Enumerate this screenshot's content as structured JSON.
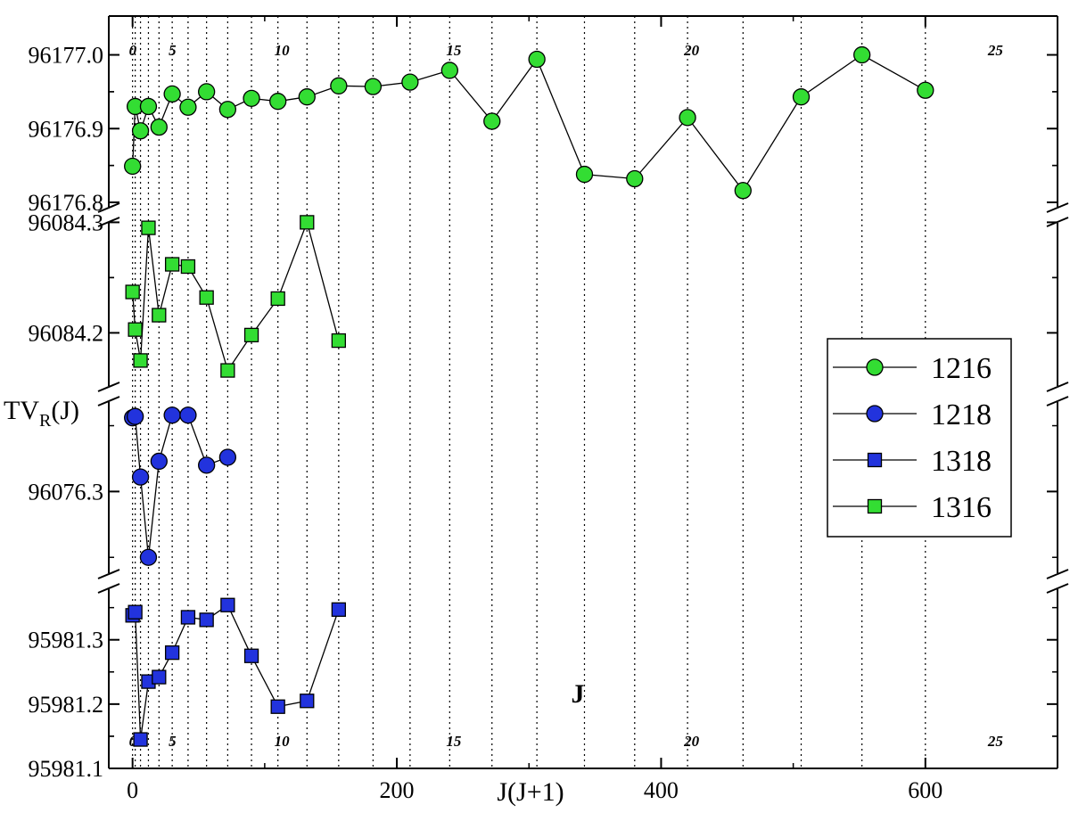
{
  "chart_data": {
    "type": "scatter",
    "xlabel": "J(J+1)",
    "ylabel": "TV",
    "ylabel_sub": "R",
    "ylabel_suffix": "(J)",
    "top_axis_label": "J",
    "xlim": [
      -18,
      700
    ],
    "x_ticks": [
      0,
      200,
      400,
      600
    ],
    "x_tick_labels": [
      "0",
      "200",
      "400",
      "600"
    ],
    "j_gridlines": [
      0,
      1,
      2,
      3,
      4,
      5,
      6,
      7,
      8,
      9,
      10,
      11,
      12,
      13,
      14,
      15,
      16,
      17,
      18,
      19,
      20,
      21,
      22,
      23,
      24
    ],
    "j_labels": [
      {
        "j": 0,
        "text": "0"
      },
      {
        "j": 5,
        "text": "5"
      },
      {
        "j": 10,
        "text": "10"
      },
      {
        "j": 15,
        "text": "15"
      },
      {
        "j": 20,
        "text": "20"
      },
      {
        "j": 25,
        "text": "25"
      }
    ],
    "grid": "vertical dotted lines at J(J+1)",
    "legend_position": "right",
    "panels": [
      {
        "id": "p1216",
        "ylim": [
          96176.8,
          96177.02
        ],
        "y_ticks": [
          96176.8,
          96176.9,
          96177.0
        ],
        "y_tick_labels": [
          "96176.8",
          "96176.9",
          "96177.0"
        ]
      },
      {
        "id": "p1316",
        "ylim": [
          96084.16,
          96084.31
        ],
        "y_ticks": [
          96084.2,
          96084.3
        ],
        "y_tick_labels": [
          "96084.2",
          "96084.3"
        ]
      },
      {
        "id": "p1218",
        "ylim": [
          96076.24,
          96076.37
        ],
        "y_ticks": [
          96076.3
        ],
        "y_tick_labels": [
          "96076.3"
        ]
      },
      {
        "id": "p1318",
        "ylim": [
          95981.1,
          95981.38
        ],
        "y_ticks": [
          95981.1,
          95981.2,
          95981.3
        ],
        "y_tick_labels": [
          "95981.1",
          "95981.2",
          "95981.3"
        ]
      }
    ],
    "series": [
      {
        "name": "1216",
        "marker": "circle",
        "color": "#33dd33",
        "panel": "p1216",
        "points": [
          [
            0,
            96176.849
          ],
          [
            2,
            96176.93
          ],
          [
            6,
            96176.897
          ],
          [
            12,
            96176.93
          ],
          [
            20,
            96176.902
          ],
          [
            30,
            96176.947
          ],
          [
            42,
            96176.929
          ],
          [
            56,
            96176.95
          ],
          [
            72,
            96176.926
          ],
          [
            90,
            96176.941
          ],
          [
            110,
            96176.937
          ],
          [
            132,
            96176.943
          ],
          [
            156,
            96176.958
          ],
          [
            182,
            96176.957
          ],
          [
            210,
            96176.963
          ],
          [
            240,
            96176.979
          ],
          [
            272,
            96176.91
          ],
          [
            306,
            96176.994
          ],
          [
            342,
            96176.838
          ],
          [
            380,
            96176.832
          ],
          [
            420,
            96176.915
          ],
          [
            462,
            96176.816
          ],
          [
            506,
            96176.943
          ],
          [
            552,
            96177.0
          ],
          [
            600,
            96176.952
          ]
        ]
      },
      {
        "name": "1218",
        "marker": "circle",
        "color": "#2233dd",
        "panel": "p1218",
        "points": [
          [
            0,
            96076.356
          ],
          [
            2,
            96076.357
          ],
          [
            6,
            96076.311
          ],
          [
            12,
            96076.25
          ],
          [
            20,
            96076.323
          ],
          [
            30,
            96076.358
          ],
          [
            42,
            96076.358
          ],
          [
            56,
            96076.32
          ],
          [
            72,
            96076.326
          ]
        ]
      },
      {
        "name": "1318",
        "marker": "square",
        "color": "#2233dd",
        "panel": "p1318",
        "points": [
          [
            0,
            95981.338
          ],
          [
            2,
            95981.343
          ],
          [
            6,
            95981.145
          ],
          [
            12,
            95981.235
          ],
          [
            20,
            95981.242
          ],
          [
            30,
            95981.28
          ],
          [
            42,
            95981.335
          ],
          [
            56,
            95981.331
          ],
          [
            72,
            95981.354
          ],
          [
            90,
            95981.275
          ],
          [
            110,
            95981.196
          ],
          [
            132,
            95981.205
          ],
          [
            156,
            95981.347
          ]
        ]
      },
      {
        "name": "1316",
        "marker": "square",
        "color": "#33dd33",
        "panel": "p1316",
        "points": [
          [
            0,
            96084.237
          ],
          [
            2,
            96084.203
          ],
          [
            6,
            96084.175
          ],
          [
            12,
            96084.295
          ],
          [
            20,
            96084.216
          ],
          [
            30,
            96084.262
          ],
          [
            42,
            96084.26
          ],
          [
            56,
            96084.232
          ],
          [
            72,
            96084.166
          ],
          [
            90,
            96084.198
          ],
          [
            110,
            96084.231
          ],
          [
            132,
            96084.3
          ],
          [
            156,
            96084.193
          ]
        ]
      }
    ]
  }
}
